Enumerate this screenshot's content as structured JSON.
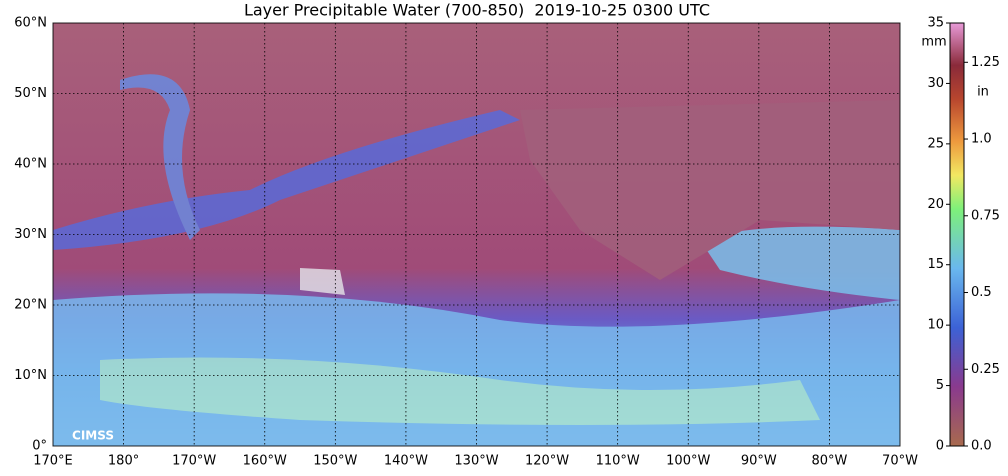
{
  "title": "Layer Precipitable Water (700-850)  2019-10-25 0300 UTC",
  "map": {
    "lat_labels": [
      "0°",
      "10°N",
      "20°N",
      "30°N",
      "40°N",
      "50°N",
      "60°N"
    ],
    "lon_labels": [
      "170°E",
      "180°",
      "170°W",
      "160°W",
      "150°W",
      "140°W",
      "130°W",
      "120°W",
      "110°W",
      "100°W",
      "90°W",
      "80°W",
      "70°W"
    ]
  },
  "colorbar": {
    "unit_mm": "mm",
    "unit_in": "in",
    "mm_lim": [
      0,
      35
    ],
    "mm_ticks": [
      0,
      5,
      10,
      15,
      20,
      25,
      30,
      35
    ],
    "in_lim": [
      0,
      1.378
    ],
    "in_ticks": [
      {
        "value": 0,
        "label": "0.0"
      },
      0.25,
      0.5,
      0.75,
      {
        "value": 1,
        "label": "1.0"
      },
      1.25
    ]
  },
  "logo": "CIMSS"
}
